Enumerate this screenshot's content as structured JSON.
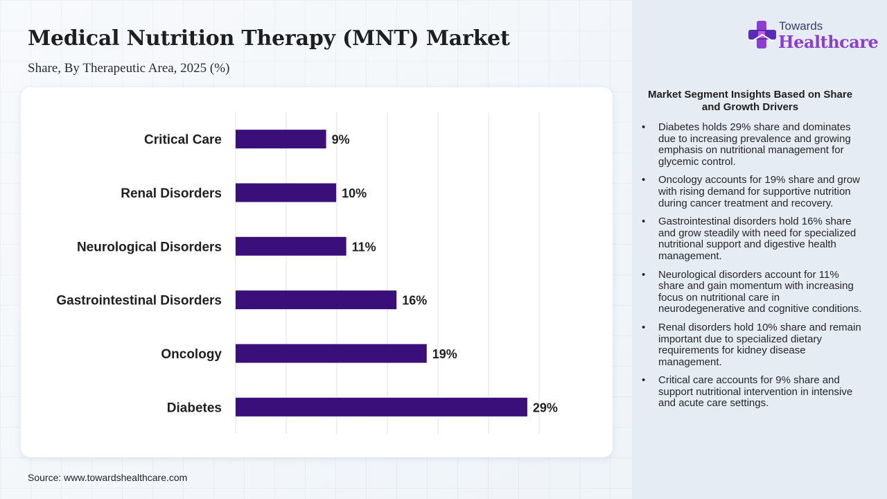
{
  "header": {
    "title": "Medical Nutrition Therapy (MNT) Market",
    "subtitle": "Share, By Therapeutic Area, 2025 (%)"
  },
  "source": "Source: www.towardshealthcare.com",
  "logo": {
    "line1": "Towards",
    "line2": "Healthcare"
  },
  "insights": {
    "title": "Market Segment Insights Based on Share and Growth Drivers",
    "items": [
      "Diabetes holds 29% share and dominates due to increasing prevalence and growing emphasis on nutritional management for glycemic control.",
      "Oncology accounts for 19% share and grow with rising demand for supportive nutrition during cancer treatment and recovery.",
      "Gastrointestinal disorders hold 16% share and grow steadily with need for specialized nutritional support and digestive health management.",
      "Neurological disorders account for 11% share and gain momentum with increasing focus on nutritional care in neurodegenerative and cognitive conditions.",
      "Renal disorders hold 10% share and remain important due to specialized dietary requirements for kidney disease management.",
      "Critical care accounts for 9% share and support nutritional intervention in intensive and acute care settings."
    ]
  },
  "chart_data": {
    "type": "bar",
    "orientation": "horizontal",
    "categories": [
      "Critical Care",
      "Renal Disorders",
      "Neurological Disorders",
      "Gastrointestinal Disorders",
      "Oncology",
      "Diabetes"
    ],
    "values": [
      9,
      10,
      11,
      16,
      19,
      29
    ],
    "data_labels": [
      "9%",
      "10%",
      "11%",
      "16%",
      "19%",
      "29%"
    ],
    "xlim": [
      0,
      35
    ],
    "grid": true,
    "bar_color": "#3b0f7a",
    "title": "",
    "xlabel": "",
    "ylabel": ""
  }
}
